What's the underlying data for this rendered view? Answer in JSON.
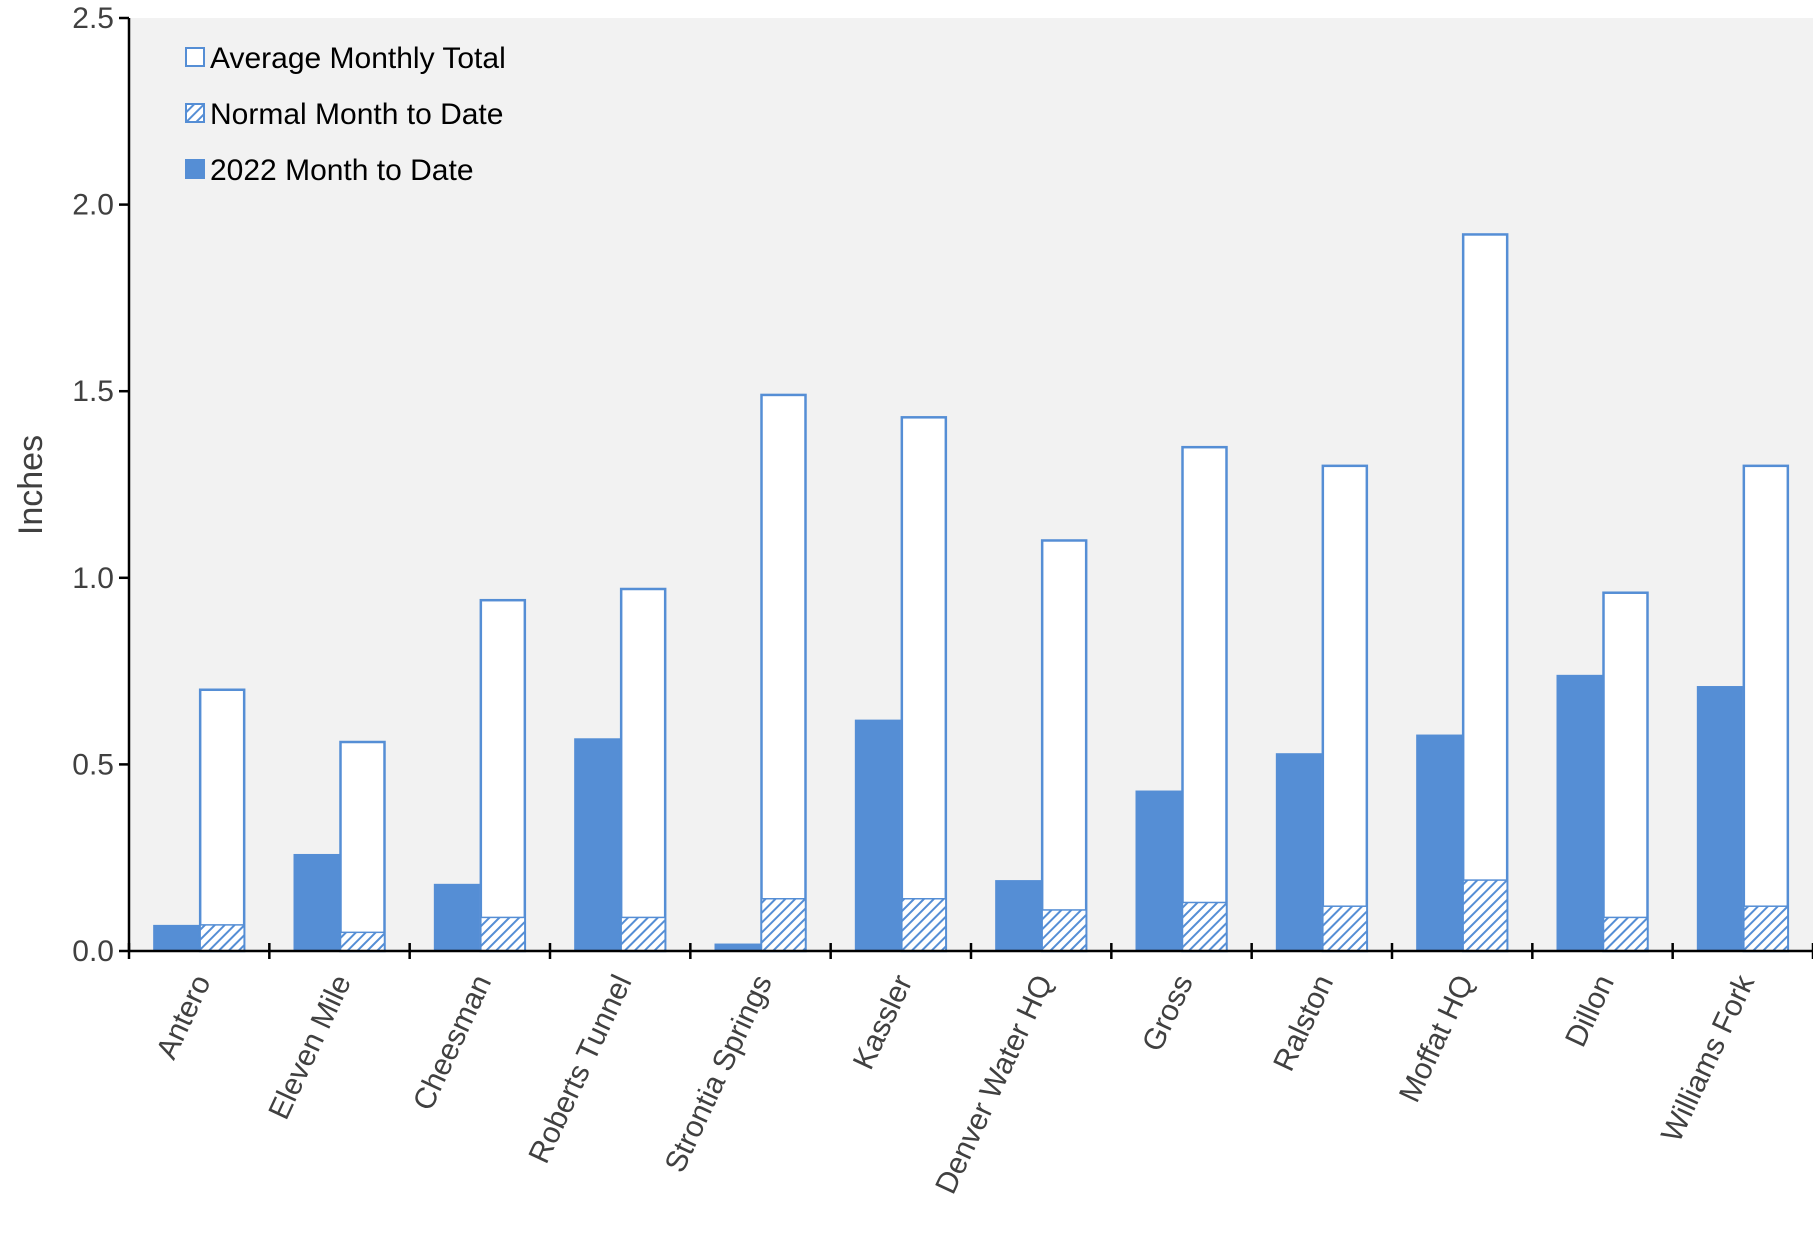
{
  "chart_data": {
    "type": "bar",
    "title": "",
    "xlabel": "",
    "ylabel": "Inches",
    "ylim": [
      0,
      2.5
    ],
    "yticks": [
      "0.0",
      "0.5",
      "1.0",
      "1.5",
      "2.0",
      "2.5"
    ],
    "ytick_values": [
      0,
      0.5,
      1.0,
      1.5,
      2.0,
      2.5
    ],
    "grid": false,
    "legend_position": "top-left",
    "categories": [
      "Antero",
      "Eleven Mile",
      "Cheesman",
      "Roberts Tunnel",
      "Strontia Springs",
      "Kassler",
      "Denver Water HQ",
      "Gross",
      "Ralston",
      "Moffat HQ",
      "Dillon",
      "Williams Fork"
    ],
    "series": [
      {
        "name": "2022 Month to Date",
        "values": [
          0.07,
          0.26,
          0.18,
          0.57,
          0.02,
          0.62,
          0.19,
          0.43,
          0.53,
          0.58,
          0.74,
          0.71
        ],
        "style": "solid"
      },
      {
        "name": "Average Monthly Total",
        "values": [
          0.7,
          0.56,
          0.94,
          0.97,
          1.49,
          1.43,
          1.1,
          1.35,
          1.3,
          1.92,
          0.96,
          1.3
        ],
        "style": "outline"
      },
      {
        "name": "Normal Month to Date",
        "values": [
          0.07,
          0.05,
          0.09,
          0.09,
          0.14,
          0.14,
          0.11,
          0.13,
          0.12,
          0.19,
          0.09,
          0.12
        ],
        "style": "hatched"
      }
    ],
    "legend": [
      "Average Monthly Total",
      "Normal Month to Date",
      "2022 Month to Date"
    ]
  },
  "colors": {
    "bar_fill": "#558ed5",
    "bar_outline": "#558ed5",
    "plot_background": "#f2f2f2",
    "axis": "#000000",
    "text": "#404040"
  }
}
